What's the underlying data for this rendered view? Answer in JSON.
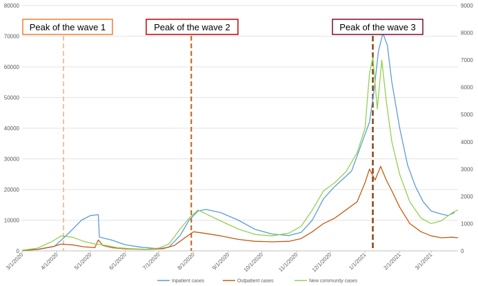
{
  "chart_data": {
    "type": "line",
    "title": "",
    "xlabel": "",
    "ylabel": "",
    "ylim_left": [
      0,
      80000
    ],
    "ylim_right": [
      0,
      9000
    ],
    "yticks_left": [
      "0",
      "10000",
      "20000",
      "30000",
      "40000",
      "50000",
      "60000",
      "70000",
      "80000"
    ],
    "yticks_right": [
      "0",
      "1000",
      "2000",
      "3000",
      "4000",
      "5000",
      "6000",
      "7000",
      "8000",
      "9000"
    ],
    "x_tick_labels": [
      "3/1/2020",
      "4/1/2020",
      "5/1/2020",
      "6/1/2020",
      "7/1/2020",
      "8/1/2020",
      "9/1/2020",
      "10/1/2020",
      "11/1/2020",
      "12/1/2020",
      "1/1/2021",
      "2/1/2021",
      "3/1/2021"
    ],
    "x_range": [
      "2020-03-01",
      "2021-03-25"
    ],
    "grid": "horizontal",
    "legend_position": "bottom",
    "series": [
      {
        "name": "Inpatient cases",
        "axis": "left",
        "color": "#5b9bd5",
        "points": [
          [
            "2020-03-01",
            200
          ],
          [
            "2020-03-15",
            500
          ],
          [
            "2020-03-30",
            1500
          ],
          [
            "2020-04-08",
            4500
          ],
          [
            "2020-04-15",
            7000
          ],
          [
            "2020-04-23",
            10000
          ],
          [
            "2020-05-01",
            11500
          ],
          [
            "2020-05-08",
            11800
          ],
          [
            "2020-05-09",
            4500
          ],
          [
            "2020-05-20",
            3500
          ],
          [
            "2020-06-01",
            2000
          ],
          [
            "2020-06-15",
            1200
          ],
          [
            "2020-07-01",
            700
          ],
          [
            "2020-07-10",
            1200
          ],
          [
            "2020-07-20",
            5000
          ],
          [
            "2020-07-28",
            10000
          ],
          [
            "2020-08-05",
            13000
          ],
          [
            "2020-08-12",
            13500
          ],
          [
            "2020-08-25",
            12500
          ],
          [
            "2020-09-10",
            10000
          ],
          [
            "2020-09-25",
            7000
          ],
          [
            "2020-10-10",
            5500
          ],
          [
            "2020-10-25",
            5000
          ],
          [
            "2020-11-05",
            6000
          ],
          [
            "2020-11-15",
            10000
          ],
          [
            "2020-11-25",
            17000
          ],
          [
            "2020-12-05",
            21000
          ],
          [
            "2020-12-20",
            26000
          ],
          [
            "2020-12-30",
            36000
          ],
          [
            "2021-01-05",
            42000
          ],
          [
            "2021-01-09",
            52000
          ],
          [
            "2021-01-13",
            65000
          ],
          [
            "2021-01-17",
            71000
          ],
          [
            "2021-01-21",
            67000
          ],
          [
            "2021-01-25",
            55000
          ],
          [
            "2021-02-01",
            40000
          ],
          [
            "2021-02-08",
            28000
          ],
          [
            "2021-02-15",
            21000
          ],
          [
            "2021-02-22",
            16000
          ],
          [
            "2021-03-01",
            13000
          ],
          [
            "2021-03-10",
            12000
          ],
          [
            "2021-03-16",
            11500
          ],
          [
            "2021-03-22",
            12500
          ]
        ]
      },
      {
        "name": "Outpatient cases",
        "axis": "right",
        "color": "#c55a11",
        "points": [
          [
            "2020-03-01",
            10
          ],
          [
            "2020-03-15",
            50
          ],
          [
            "2020-03-28",
            150
          ],
          [
            "2020-04-05",
            250
          ],
          [
            "2020-04-15",
            220
          ],
          [
            "2020-04-25",
            150
          ],
          [
            "2020-05-05",
            120
          ],
          [
            "2020-05-08",
            400
          ],
          [
            "2020-05-12",
            200
          ],
          [
            "2020-05-20",
            120
          ],
          [
            "2020-06-01",
            70
          ],
          [
            "2020-06-20",
            50
          ],
          [
            "2020-07-05",
            80
          ],
          [
            "2020-07-15",
            200
          ],
          [
            "2020-07-25",
            500
          ],
          [
            "2020-08-01",
            700
          ],
          [
            "2020-08-10",
            650
          ],
          [
            "2020-08-25",
            550
          ],
          [
            "2020-09-10",
            420
          ],
          [
            "2020-09-25",
            350
          ],
          [
            "2020-10-10",
            330
          ],
          [
            "2020-10-25",
            350
          ],
          [
            "2020-11-05",
            450
          ],
          [
            "2020-11-15",
            700
          ],
          [
            "2020-11-25",
            1000
          ],
          [
            "2020-12-05",
            1200
          ],
          [
            "2020-12-15",
            1500
          ],
          [
            "2020-12-25",
            1800
          ],
          [
            "2021-01-01",
            2500
          ],
          [
            "2021-01-05",
            3000
          ],
          [
            "2021-01-10",
            2600
          ],
          [
            "2021-01-15",
            3100
          ],
          [
            "2021-01-20",
            2600
          ],
          [
            "2021-01-25",
            2200
          ],
          [
            "2021-02-01",
            1600
          ],
          [
            "2021-02-10",
            1000
          ],
          [
            "2021-02-20",
            700
          ],
          [
            "2021-03-01",
            550
          ],
          [
            "2021-03-10",
            480
          ],
          [
            "2021-03-20",
            500
          ],
          [
            "2021-03-25",
            480
          ]
        ]
      },
      {
        "name": "New community cases",
        "axis": "right",
        "color": "#92d050",
        "points": [
          [
            "2020-03-01",
            20
          ],
          [
            "2020-03-15",
            100
          ],
          [
            "2020-03-28",
            350
          ],
          [
            "2020-04-05",
            550
          ],
          [
            "2020-04-15",
            500
          ],
          [
            "2020-04-25",
            350
          ],
          [
            "2020-05-05",
            250
          ],
          [
            "2020-05-15",
            200
          ],
          [
            "2020-05-25",
            120
          ],
          [
            "2020-06-05",
            80
          ],
          [
            "2020-06-20",
            60
          ],
          [
            "2020-07-01",
            100
          ],
          [
            "2020-07-10",
            250
          ],
          [
            "2020-07-20",
            800
          ],
          [
            "2020-07-28",
            1200
          ],
          [
            "2020-08-05",
            1500
          ],
          [
            "2020-08-15",
            1300
          ],
          [
            "2020-08-25",
            1100
          ],
          [
            "2020-09-10",
            800
          ],
          [
            "2020-09-25",
            600
          ],
          [
            "2020-10-10",
            550
          ],
          [
            "2020-10-25",
            650
          ],
          [
            "2020-11-05",
            900
          ],
          [
            "2020-11-15",
            1500
          ],
          [
            "2020-11-25",
            2200
          ],
          [
            "2020-12-05",
            2500
          ],
          [
            "2020-12-15",
            2900
          ],
          [
            "2020-12-25",
            3600
          ],
          [
            "2021-01-01",
            4500
          ],
          [
            "2021-01-05",
            6500
          ],
          [
            "2021-01-08",
            7100
          ],
          [
            "2021-01-12",
            5200
          ],
          [
            "2021-01-16",
            7000
          ],
          [
            "2021-01-20",
            5500
          ],
          [
            "2021-01-25",
            4000
          ],
          [
            "2021-02-01",
            2800
          ],
          [
            "2021-02-10",
            1800
          ],
          [
            "2021-02-20",
            1200
          ],
          [
            "2021-03-01",
            1000
          ],
          [
            "2021-03-10",
            1100
          ],
          [
            "2021-03-20",
            1400
          ],
          [
            "2021-03-25",
            1500
          ]
        ]
      }
    ],
    "annotations": [
      {
        "label": "Peak of the wave 1",
        "date": "2020-04-07",
        "color": "#f4b183",
        "border": "#ed7d31"
      },
      {
        "label": "Peak of the wave 2",
        "date": "2020-07-30",
        "color": "#c55a11",
        "border": "#c00000"
      },
      {
        "label": "Peak of the wave 3",
        "date": "2021-01-08",
        "color": "#843c0c",
        "border": "#7b0c2e"
      }
    ]
  }
}
